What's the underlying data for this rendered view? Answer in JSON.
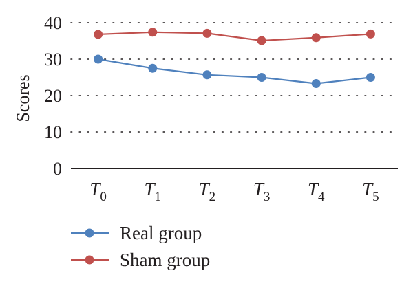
{
  "chart_data": {
    "type": "line",
    "categories": [
      {
        "base": "T",
        "sub": "0"
      },
      {
        "base": "T",
        "sub": "1"
      },
      {
        "base": "T",
        "sub": "2"
      },
      {
        "base": "T",
        "sub": "3"
      },
      {
        "base": "T",
        "sub": "4"
      },
      {
        "base": "T",
        "sub": "5"
      }
    ],
    "series": [
      {
        "name": "Real group",
        "color": "#4f81bd",
        "values": [
          30,
          27.5,
          25.7,
          25,
          23.3,
          25
        ]
      },
      {
        "name": "Sham group",
        "color": "#c0504d",
        "values": [
          36.8,
          37.4,
          37.1,
          35.1,
          35.9,
          36.9
        ]
      }
    ],
    "ylabel": "Scores",
    "xlabel": "",
    "title": "",
    "ylim": [
      0,
      40
    ],
    "yticks": [
      0,
      10,
      20,
      30,
      40
    ],
    "grid": "dotted-horizontal",
    "legend_position": "bottom-left"
  }
}
